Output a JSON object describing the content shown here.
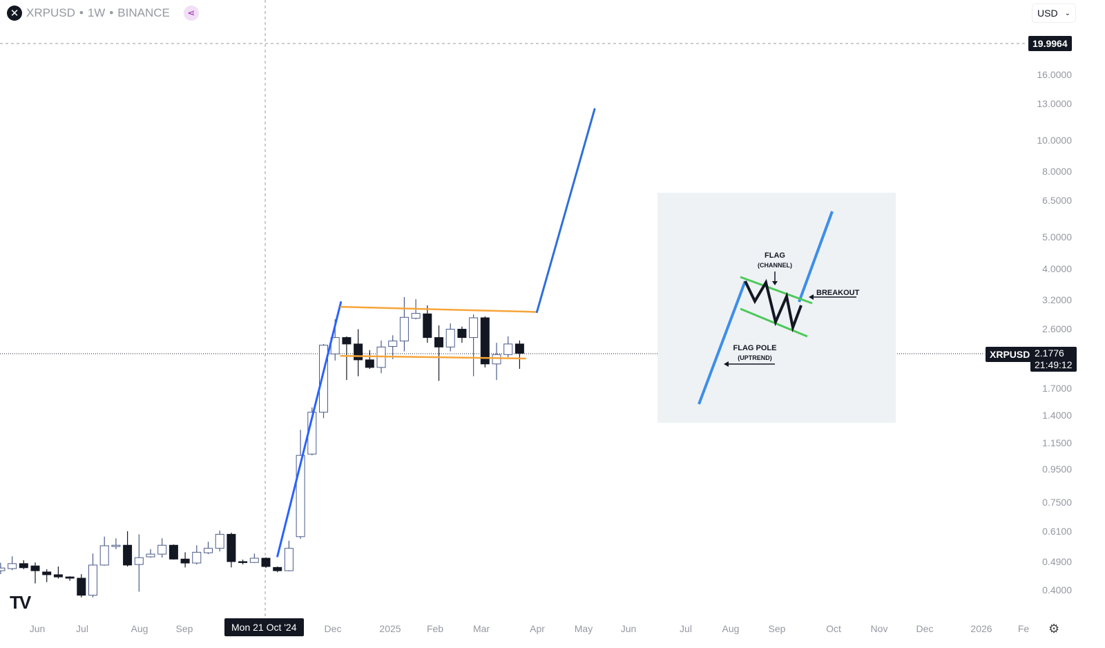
{
  "header": {
    "symbol": "XRPUSD",
    "interval": "1W",
    "exchange": "BINANCE",
    "separator": "•",
    "logo_icon": "x-icon",
    "share_icon": "share-icon"
  },
  "currency_select": {
    "value": "USD"
  },
  "crosshair": {
    "price_label": "19.9964",
    "date_label": "Mon 21 Oct '24"
  },
  "last_price": {
    "symbol": "XRPUSD",
    "price": "2.1776",
    "countdown": "21:49:12"
  },
  "colors": {
    "bull_border": "#4a5a8a",
    "bear_fill": "#131722",
    "pole": "#2962ff",
    "flag": "#f7a539",
    "projection": "#2e6fdb",
    "panel": "#eef2f5",
    "info_blue": "#3d8ee8",
    "info_green": "#4cc95a"
  },
  "chart_data": {
    "type": "candlestick",
    "scale": "log",
    "price_ticks": [
      "16.0000",
      "13.0000",
      "10.0000",
      "8.0000",
      "6.5000",
      "5.0000",
      "4.0000",
      "3.2000",
      "2.6000",
      "1.7000",
      "1.4000",
      "1.1500",
      "0.9500",
      "0.7500",
      "0.6100",
      "0.4900",
      "0.4000"
    ],
    "time_labels": [
      "Jun",
      "Jul",
      "Aug",
      "Sep",
      "Dec",
      "2025",
      "Feb",
      "Mar",
      "Apr",
      "May",
      "Jun",
      "Jul",
      "Aug",
      "Sep",
      "Oct",
      "Nov",
      "Dec",
      "2026",
      "Fe"
    ],
    "start_date": "2024-05-13",
    "candles": [
      [
        0.46,
        0.487,
        0.449,
        0.469
      ],
      [
        0.467,
        0.51,
        0.462,
        0.484
      ],
      [
        0.484,
        0.496,
        0.465,
        0.47
      ],
      [
        0.476,
        0.488,
        0.42,
        0.46
      ],
      [
        0.456,
        0.465,
        0.424,
        0.447
      ],
      [
        0.447,
        0.474,
        0.435,
        0.44
      ],
      [
        0.44,
        0.442,
        0.428,
        0.436
      ],
      [
        0.436,
        0.449,
        0.38,
        0.386
      ],
      [
        0.386,
        0.52,
        0.38,
        0.479
      ],
      [
        0.479,
        0.587,
        0.477,
        0.55
      ],
      [
        0.547,
        0.58,
        0.537,
        0.552
      ],
      [
        0.552,
        0.61,
        0.474,
        0.479
      ],
      [
        0.481,
        0.597,
        0.396,
        0.505
      ],
      [
        0.508,
        0.537,
        0.505,
        0.518
      ],
      [
        0.518,
        0.58,
        0.505,
        0.552
      ],
      [
        0.552,
        0.555,
        0.498,
        0.5
      ],
      [
        0.5,
        0.525,
        0.471,
        0.486
      ],
      [
        0.486,
        0.552,
        0.481,
        0.525
      ],
      [
        0.523,
        0.566,
        0.518,
        0.54
      ],
      [
        0.54,
        0.613,
        0.528,
        0.597
      ],
      [
        0.597,
        0.604,
        0.471,
        0.491
      ],
      [
        0.491,
        0.498,
        0.481,
        0.489
      ],
      [
        0.488,
        0.52,
        0.486,
        0.503
      ],
      [
        0.503,
        0.506,
        0.469,
        0.474
      ],
      [
        0.471,
        0.474,
        0.455,
        0.46
      ],
      [
        0.46,
        0.57,
        0.458,
        0.54
      ],
      [
        0.587,
        1.26,
        0.578,
        1.05
      ],
      [
        1.06,
        1.48,
        1.05,
        1.43
      ],
      [
        1.43,
        2.33,
        1.37,
        2.31
      ],
      [
        2.17,
        2.78,
        2.07,
        2.44
      ],
      [
        2.44,
        2.46,
        1.8,
        2.33
      ],
      [
        2.33,
        2.59,
        1.85,
        2.08
      ],
      [
        2.08,
        2.23,
        1.95,
        1.97
      ],
      [
        1.97,
        2.39,
        1.89,
        2.28
      ],
      [
        2.29,
        2.48,
        2.09,
        2.38
      ],
      [
        2.38,
        3.26,
        2.21,
        2.82
      ],
      [
        2.8,
        3.21,
        2.78,
        2.9
      ],
      [
        2.89,
        3.07,
        2.35,
        2.44
      ],
      [
        2.44,
        2.66,
        1.79,
        2.28
      ],
      [
        2.28,
        2.7,
        2.21,
        2.59
      ],
      [
        2.59,
        2.64,
        2.35,
        2.44
      ],
      [
        2.44,
        2.88,
        1.85,
        2.81
      ],
      [
        2.81,
        2.84,
        1.97,
        2.02
      ],
      [
        2.02,
        2.35,
        1.8,
        2.16
      ],
      [
        2.16,
        2.46,
        2.12,
        2.33
      ],
      [
        2.33,
        2.39,
        1.95,
        2.18
      ]
    ],
    "candle_format": [
      "open",
      "high",
      "low",
      "close"
    ],
    "drawings": {
      "flag_pole": [
        {
          "week": 24,
          "price": 0.51
        },
        {
          "week": 29.5,
          "price": 3.14
        }
      ],
      "flag_top": [
        {
          "week": 29.5,
          "price": 3.04
        },
        {
          "week": 46.5,
          "price": 2.93
        }
      ],
      "flag_bottom": [
        {
          "week": 29.5,
          "price": 2.14
        },
        {
          "week": 45.5,
          "price": 2.1
        }
      ],
      "projection": [
        {
          "week": 46.5,
          "price": 2.93
        },
        {
          "week": 51.5,
          "price": 12.5
        }
      ]
    }
  },
  "infographic": {
    "flag_title": "FLAG",
    "flag_sub": "(CHANNEL)",
    "breakout": "BREAKOUT",
    "pole_title": "FLAG POLE",
    "pole_sub": "(UPTREND)"
  }
}
